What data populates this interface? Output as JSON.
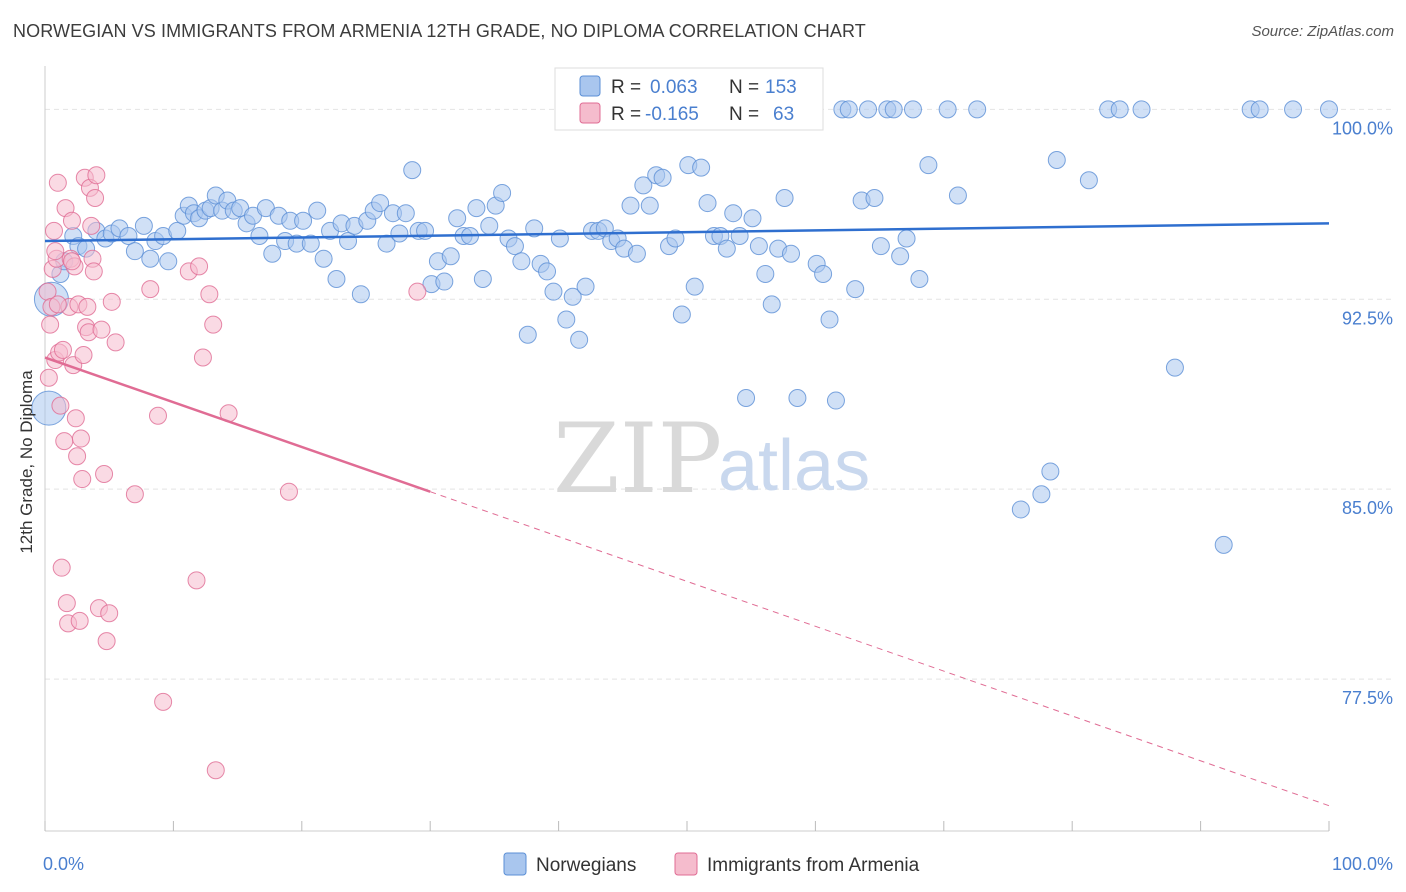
{
  "title": "NORWEGIAN VS IMMIGRANTS FROM ARMENIA 12TH GRADE, NO DIPLOMA CORRELATION CHART",
  "source": "Source: ZipAtlas.com",
  "watermark": {
    "zip": "ZIP",
    "atlas": "atlas"
  },
  "colors": {
    "blue": "#5b8fd6",
    "blue_fill": "#a9c6ee",
    "pink": "#e06c94",
    "pink_fill": "#f5bccd",
    "tick": "#4a7fcf",
    "grid": "#e4e4e4"
  },
  "legend": {
    "rows": [
      {
        "r_label": "R =",
        "r_value": "0.063",
        "n_label": "N =",
        "n_value": "153"
      },
      {
        "r_label": "R =",
        "r_value": "-0.165",
        "n_label": "N =",
        "n_value": "63"
      }
    ]
  },
  "bottom_legend": [
    "Norwegians",
    "Immigrants from Armenia"
  ],
  "chart_data": {
    "type": "scatter",
    "title": "NORWEGIAN VS IMMIGRANTS FROM ARMENIA 12TH GRADE, NO DIPLOMA CORRELATION CHART",
    "xlabel": "",
    "ylabel": "12th Grade, No Diploma",
    "xlim": [
      0,
      100
    ],
    "ylim": [
      71.5,
      101.2
    ],
    "x_tick_labels": [
      "0.0%",
      "100.0%"
    ],
    "y_ticks": [
      77.5,
      85.0,
      92.5,
      100.0
    ],
    "y_tick_labels": [
      "77.5%",
      "85.0%",
      "92.5%",
      "100.0%"
    ],
    "grid": true,
    "legend_position": "top-center",
    "series": [
      {
        "name": "Norwegians",
        "r": 0.063,
        "n": 153,
        "trend": {
          "x": [
            0,
            100
          ],
          "y": [
            94.8,
            95.5
          ]
        },
        "points": [
          [
            0.3,
            88.2
          ],
          [
            0.5,
            92.5
          ],
          [
            1.2,
            93.5
          ],
          [
            1.5,
            94.0
          ],
          [
            2.2,
            95.0
          ],
          [
            2.6,
            94.6
          ],
          [
            3.2,
            94.5
          ],
          [
            4.0,
            95.2
          ],
          [
            4.7,
            94.9
          ],
          [
            5.2,
            95.1
          ],
          [
            5.8,
            95.3
          ],
          [
            6.5,
            95.0
          ],
          [
            7.0,
            94.4
          ],
          [
            7.7,
            95.4
          ],
          [
            8.2,
            94.1
          ],
          [
            8.6,
            94.8
          ],
          [
            9.2,
            95.0
          ],
          [
            9.6,
            94.0
          ],
          [
            10.3,
            95.2
          ],
          [
            10.8,
            95.8
          ],
          [
            11.2,
            96.2
          ],
          [
            11.6,
            95.9
          ],
          [
            12.0,
            95.7
          ],
          [
            12.5,
            96.0
          ],
          [
            12.9,
            96.1
          ],
          [
            13.3,
            96.6
          ],
          [
            13.8,
            96.0
          ],
          [
            14.2,
            96.4
          ],
          [
            14.7,
            96.0
          ],
          [
            15.2,
            96.1
          ],
          [
            15.7,
            95.5
          ],
          [
            16.2,
            95.8
          ],
          [
            16.7,
            95.0
          ],
          [
            17.2,
            96.1
          ],
          [
            17.7,
            94.3
          ],
          [
            18.2,
            95.8
          ],
          [
            18.7,
            94.8
          ],
          [
            19.1,
            95.6
          ],
          [
            19.6,
            94.7
          ],
          [
            20.1,
            95.6
          ],
          [
            20.7,
            94.7
          ],
          [
            21.2,
            96.0
          ],
          [
            21.7,
            94.1
          ],
          [
            22.2,
            95.2
          ],
          [
            22.7,
            93.3
          ],
          [
            23.1,
            95.5
          ],
          [
            23.6,
            94.8
          ],
          [
            24.1,
            95.4
          ],
          [
            24.6,
            92.7
          ],
          [
            25.1,
            95.6
          ],
          [
            25.6,
            96.0
          ],
          [
            26.1,
            96.3
          ],
          [
            26.6,
            94.7
          ],
          [
            27.1,
            95.9
          ],
          [
            27.6,
            95.1
          ],
          [
            28.1,
            95.9
          ],
          [
            28.6,
            97.6
          ],
          [
            29.1,
            95.2
          ],
          [
            29.6,
            95.2
          ],
          [
            30.1,
            93.1
          ],
          [
            30.6,
            94.0
          ],
          [
            31.1,
            93.2
          ],
          [
            31.6,
            94.2
          ],
          [
            32.1,
            95.7
          ],
          [
            32.6,
            95.0
          ],
          [
            33.1,
            95.0
          ],
          [
            33.6,
            96.1
          ],
          [
            34.1,
            93.3
          ],
          [
            34.6,
            95.4
          ],
          [
            35.1,
            96.2
          ],
          [
            35.6,
            96.7
          ],
          [
            36.1,
            94.9
          ],
          [
            36.6,
            94.6
          ],
          [
            37.1,
            94.0
          ],
          [
            37.6,
            91.1
          ],
          [
            38.1,
            95.3
          ],
          [
            38.6,
            93.9
          ],
          [
            39.1,
            93.6
          ],
          [
            39.6,
            92.8
          ],
          [
            40.1,
            94.9
          ],
          [
            40.6,
            91.7
          ],
          [
            41.1,
            92.6
          ],
          [
            41.6,
            90.9
          ],
          [
            42.1,
            93.0
          ],
          [
            42.6,
            95.2
          ],
          [
            43.1,
            95.2
          ],
          [
            43.6,
            95.3
          ],
          [
            44.1,
            94.8
          ],
          [
            44.6,
            94.9
          ],
          [
            45.1,
            94.5
          ],
          [
            45.6,
            96.2
          ],
          [
            46.1,
            94.3
          ],
          [
            46.6,
            97.0
          ],
          [
            47.1,
            96.2
          ],
          [
            47.6,
            97.4
          ],
          [
            48.1,
            97.3
          ],
          [
            48.6,
            94.6
          ],
          [
            49.1,
            94.9
          ],
          [
            49.6,
            91.9
          ],
          [
            50.1,
            97.8
          ],
          [
            50.6,
            93.0
          ],
          [
            51.1,
            97.7
          ],
          [
            51.6,
            96.3
          ],
          [
            52.1,
            95.0
          ],
          [
            52.6,
            95.0
          ],
          [
            53.1,
            94.5
          ],
          [
            53.6,
            95.9
          ],
          [
            54.1,
            95.0
          ],
          [
            54.6,
            88.6
          ],
          [
            55.1,
            95.7
          ],
          [
            55.6,
            94.6
          ],
          [
            56.1,
            93.5
          ],
          [
            56.6,
            92.3
          ],
          [
            57.1,
            94.5
          ],
          [
            57.6,
            96.5
          ],
          [
            58.1,
            94.3
          ],
          [
            58.6,
            88.6
          ],
          [
            59.1,
            100.0
          ],
          [
            60.1,
            93.9
          ],
          [
            60.6,
            93.5
          ],
          [
            61.1,
            91.7
          ],
          [
            61.6,
            88.5
          ],
          [
            62.1,
            100.0
          ],
          [
            62.6,
            100.0
          ],
          [
            63.1,
            92.9
          ],
          [
            63.6,
            96.4
          ],
          [
            64.1,
            100.0
          ],
          [
            64.6,
            96.5
          ],
          [
            65.1,
            94.6
          ],
          [
            65.6,
            100.0
          ],
          [
            66.1,
            100.0
          ],
          [
            66.6,
            94.2
          ],
          [
            67.1,
            94.9
          ],
          [
            67.6,
            100.0
          ],
          [
            68.1,
            93.3
          ],
          [
            68.8,
            97.8
          ],
          [
            70.3,
            100.0
          ],
          [
            71.1,
            96.6
          ],
          [
            72.6,
            100.0
          ],
          [
            76.0,
            84.2
          ],
          [
            77.6,
            84.8
          ],
          [
            78.3,
            85.7
          ],
          [
            78.8,
            98.0
          ],
          [
            81.3,
            97.2
          ],
          [
            82.8,
            100.0
          ],
          [
            83.7,
            100.0
          ],
          [
            85.4,
            100.0
          ],
          [
            88.0,
            89.8
          ],
          [
            91.8,
            82.8
          ],
          [
            93.9,
            100.0
          ],
          [
            94.6,
            100.0
          ],
          [
            97.2,
            100.0
          ],
          [
            100.0,
            100.0
          ]
        ]
      },
      {
        "name": "Immigrants from Armenia",
        "r": -0.165,
        "n": 63,
        "trend": {
          "x": [
            0,
            30
          ],
          "y": [
            90.2,
            84.9
          ],
          "dashed_to": {
            "x": 100,
            "y": 72.5
          }
        },
        "points": [
          [
            0.2,
            92.8
          ],
          [
            0.3,
            89.4
          ],
          [
            0.4,
            91.5
          ],
          [
            0.5,
            92.2
          ],
          [
            0.6,
            93.7
          ],
          [
            0.7,
            95.2
          ],
          [
            0.8,
            90.1
          ],
          [
            0.9,
            94.1
          ],
          [
            1.0,
            97.1
          ],
          [
            1.1,
            90.4
          ],
          [
            1.2,
            88.3
          ],
          [
            1.3,
            81.9
          ],
          [
            1.4,
            90.5
          ],
          [
            1.5,
            86.9
          ],
          [
            1.6,
            96.1
          ],
          [
            1.7,
            80.5
          ],
          [
            1.8,
            79.7
          ],
          [
            1.9,
            92.2
          ],
          [
            2.0,
            94.1
          ],
          [
            2.1,
            95.6
          ],
          [
            2.2,
            89.9
          ],
          [
            2.3,
            93.8
          ],
          [
            2.4,
            87.8
          ],
          [
            2.5,
            86.3
          ],
          [
            2.6,
            92.3
          ],
          [
            2.7,
            79.8
          ],
          [
            2.8,
            87.0
          ],
          [
            2.9,
            85.4
          ],
          [
            3.0,
            90.3
          ],
          [
            3.1,
            97.3
          ],
          [
            3.2,
            91.4
          ],
          [
            3.3,
            92.2
          ],
          [
            3.4,
            91.2
          ],
          [
            3.5,
            96.9
          ],
          [
            3.6,
            95.4
          ],
          [
            3.7,
            94.1
          ],
          [
            3.8,
            93.6
          ],
          [
            3.9,
            96.5
          ],
          [
            4.0,
            97.4
          ],
          [
            4.2,
            80.3
          ],
          [
            4.4,
            91.3
          ],
          [
            4.6,
            85.6
          ],
          [
            4.8,
            79.0
          ],
          [
            5.0,
            80.1
          ],
          [
            5.2,
            92.4
          ],
          [
            5.5,
            90.8
          ],
          [
            7.0,
            84.8
          ],
          [
            8.2,
            92.9
          ],
          [
            8.8,
            87.9
          ],
          [
            9.2,
            76.6
          ],
          [
            11.2,
            93.6
          ],
          [
            11.8,
            81.4
          ],
          [
            12.0,
            93.8
          ],
          [
            12.3,
            90.2
          ],
          [
            12.8,
            92.7
          ],
          [
            13.1,
            91.5
          ],
          [
            13.3,
            73.9
          ],
          [
            14.3,
            88.0
          ],
          [
            19.0,
            84.9
          ],
          [
            29.0,
            92.8
          ],
          [
            1.0,
            92.3
          ],
          [
            2.1,
            94.0
          ],
          [
            0.8,
            94.4
          ]
        ]
      }
    ]
  }
}
